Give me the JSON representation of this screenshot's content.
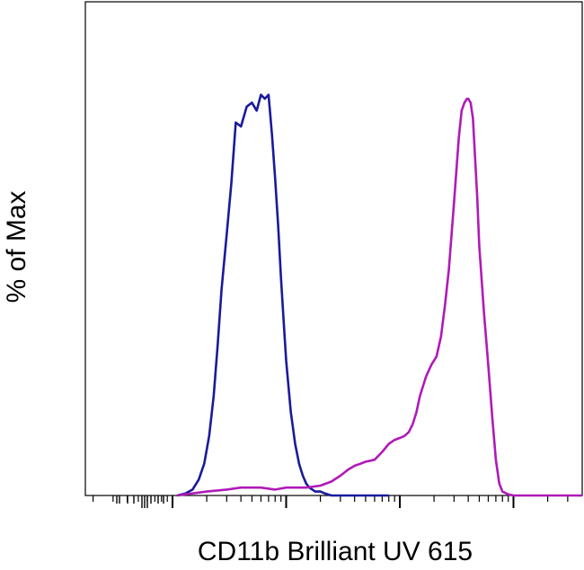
{
  "chart_data": {
    "type": "line",
    "title": "",
    "xlabel": "CD11b Brilliant UV 615",
    "ylabel": "% of Max",
    "xscale": "log",
    "xlim": [
      1,
      100000
    ],
    "ylim": [
      0,
      100
    ],
    "grid": false,
    "legend": "none",
    "major_ticks": [
      10,
      100,
      1000,
      10000
    ],
    "series": [
      {
        "color": "#1a1a9c",
        "x": [
          11,
          13,
          15,
          17,
          19,
          21,
          23,
          25,
          27,
          30,
          33,
          36,
          40,
          45,
          50,
          55,
          60,
          65,
          70,
          75,
          80,
          85,
          90,
          95,
          100,
          110,
          120,
          130,
          140,
          150,
          160,
          180,
          200,
          220,
          250,
          280,
          320,
          360,
          400,
          500,
          600,
          700,
          800
        ],
        "values": [
          0,
          0.5,
          1.5,
          4,
          8,
          15,
          25,
          38,
          52,
          66,
          79,
          94,
          93,
          98,
          99,
          97,
          101,
          100,
          101,
          91,
          80,
          68,
          55,
          44,
          34,
          21,
          13,
          8,
          5,
          3,
          2,
          1,
          1,
          0.5,
          0,
          0,
          0,
          0,
          0,
          0,
          0,
          0,
          0
        ]
      },
      {
        "color": "#b01ab8",
        "x": [
          11,
          20,
          30,
          40,
          60,
          80,
          100,
          150,
          200,
          250,
          300,
          350,
          400,
          450,
          500,
          600,
          700,
          800,
          900,
          1000,
          1100,
          1200,
          1300,
          1400,
          1500,
          1700,
          1900,
          2100,
          2300,
          2500,
          2700,
          3000,
          3300,
          3500,
          3700,
          3900,
          4000,
          4200,
          4400,
          4600,
          4800,
          5000,
          5500,
          6000,
          6500,
          7000,
          7500,
          8000,
          9000,
          10000,
          20000,
          50000,
          100000
        ],
        "values": [
          0,
          1,
          1.5,
          2,
          2,
          1.5,
          2,
          2,
          2.5,
          3.5,
          5,
          6.5,
          7.5,
          8,
          8.5,
          9,
          11,
          13,
          14,
          14.5,
          15,
          16,
          18,
          21,
          25,
          30,
          33,
          35,
          40,
          48,
          57,
          74,
          90,
          97,
          99,
          100,
          100,
          99,
          95,
          85,
          75,
          63,
          46,
          33,
          20,
          9,
          3,
          1,
          0.3,
          0,
          0,
          0,
          0
        ]
      }
    ]
  }
}
